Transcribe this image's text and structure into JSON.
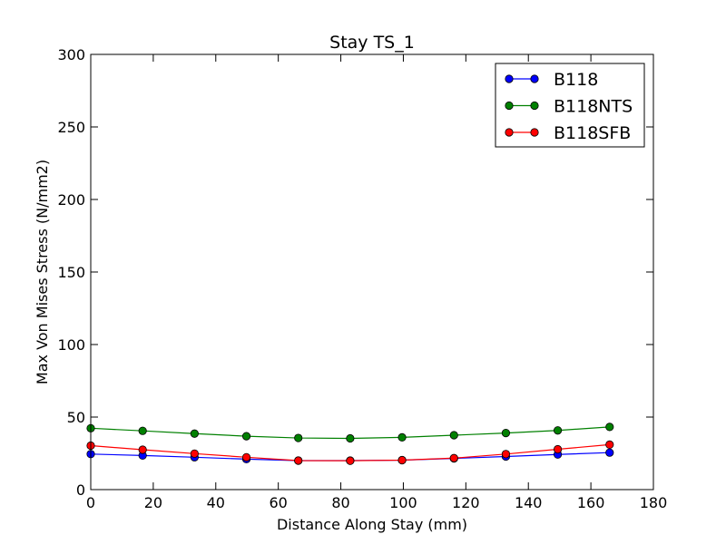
{
  "chart_data": {
    "type": "line",
    "title": "Stay TS_1",
    "xlabel": "Distance Along Stay (mm)",
    "ylabel": "Max Von Mises Stress (N/mm2)",
    "xlim": [
      0,
      180
    ],
    "ylim": [
      0,
      300
    ],
    "xticks": [
      "0",
      "20",
      "40",
      "60",
      "80",
      "100",
      "120",
      "140",
      "160",
      "180"
    ],
    "yticks": [
      "0",
      "50",
      "100",
      "150",
      "200",
      "250",
      "300"
    ],
    "grid": false,
    "legend_position": "top-right",
    "x": [
      0,
      16.6,
      33.2,
      49.8,
      66.4,
      83.0,
      99.6,
      116.2,
      132.8,
      149.4,
      166.0
    ],
    "series": [
      {
        "name": "B118",
        "color": "#0000ff",
        "values": [
          24.5,
          23.5,
          22.3,
          21.0,
          20.0,
          20.0,
          20.3,
          21.5,
          22.8,
          24.2,
          25.5
        ]
      },
      {
        "name": "B118NTS",
        "color": "#008000",
        "values": [
          42.3,
          40.5,
          38.6,
          36.8,
          35.6,
          35.3,
          36.0,
          37.5,
          39.0,
          40.8,
          43.2
        ]
      },
      {
        "name": "B118SFB",
        "color": "#ff0000",
        "values": [
          30.3,
          27.5,
          24.8,
          22.3,
          20.0,
          19.9,
          20.3,
          21.7,
          24.5,
          27.8,
          31.0
        ]
      }
    ]
  }
}
